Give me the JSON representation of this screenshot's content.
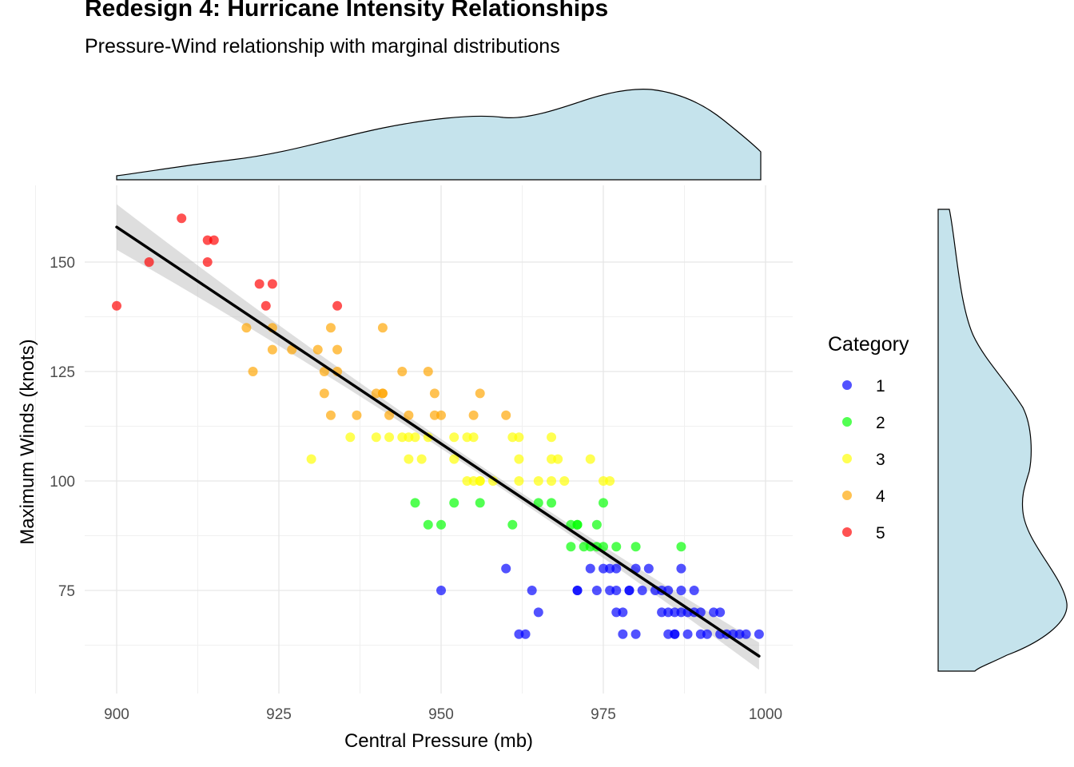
{
  "title": "Redesign 4: Hurricane Intensity Relationships",
  "subtitle": "Pressure-Wind relationship with marginal distributions",
  "chart_data": {
    "type": "scatter",
    "title": "Redesign 4: Hurricane Intensity Relationships",
    "subtitle": "Pressure-Wind relationship with marginal distributions",
    "xlabel": "Central Pressure (mb)",
    "ylabel": "Maximum Winds (knots)",
    "xlim": [
      900,
      1000
    ],
    "ylim": [
      65,
      160
    ],
    "xticks": [
      900,
      925,
      950,
      975,
      1000
    ],
    "yticks": [
      75,
      100,
      125,
      150
    ],
    "grid": true,
    "legend": {
      "title": "Category",
      "placement": "right"
    },
    "series": [
      {
        "name": "1",
        "color": "#0000FF",
        "x": [
          950,
          960,
          962,
          963,
          964,
          965,
          971,
          971,
          973,
          974,
          975,
          976,
          976,
          977,
          977,
          977,
          978,
          978,
          979,
          979,
          980,
          980,
          981,
          982,
          983,
          984,
          984,
          985,
          985,
          985,
          986,
          986,
          986,
          987,
          987,
          987,
          988,
          988,
          989,
          989,
          990,
          990,
          991,
          992,
          993,
          993,
          994,
          995,
          996,
          997,
          999
        ],
        "y": [
          75,
          80,
          65,
          65,
          75,
          70,
          75,
          75,
          80,
          75,
          80,
          75,
          80,
          70,
          80,
          75,
          65,
          70,
          75,
          75,
          80,
          65,
          75,
          80,
          75,
          75,
          70,
          75,
          70,
          65,
          70,
          65,
          65,
          75,
          70,
          80,
          70,
          65,
          75,
          70,
          70,
          65,
          65,
          70,
          70,
          65,
          65,
          65,
          65,
          65,
          65
        ]
      },
      {
        "name": "2",
        "color": "#00FF00",
        "x": [
          946,
          948,
          950,
          952,
          956,
          961,
          965,
          967,
          970,
          970,
          971,
          971,
          972,
          973,
          974,
          974,
          975,
          975,
          977,
          980,
          987
        ],
        "y": [
          95,
          90,
          90,
          95,
          95,
          90,
          95,
          95,
          90,
          85,
          90,
          90,
          85,
          85,
          90,
          85,
          95,
          85,
          85,
          85,
          85
        ]
      },
      {
        "name": "3",
        "color": "#FFFF00",
        "x": [
          930,
          936,
          940,
          942,
          944,
          945,
          945,
          946,
          947,
          948,
          952,
          952,
          954,
          954,
          955,
          955,
          956,
          956,
          958,
          961,
          962,
          962,
          962,
          965,
          967,
          967,
          967,
          968,
          969,
          973,
          975,
          976
        ],
        "y": [
          105,
          110,
          110,
          110,
          110,
          110,
          105,
          110,
          105,
          110,
          110,
          105,
          100,
          110,
          100,
          110,
          100,
          100,
          100,
          110,
          110,
          105,
          100,
          100,
          110,
          105,
          100,
          105,
          100,
          105,
          100,
          100
        ]
      },
      {
        "name": "4",
        "color": "#FFA500",
        "x": [
          920,
          921,
          924,
          924,
          927,
          931,
          932,
          932,
          933,
          933,
          934,
          934,
          937,
          940,
          941,
          941,
          941,
          942,
          944,
          945,
          948,
          949,
          949,
          950,
          955,
          956,
          960
        ],
        "y": [
          135,
          125,
          135,
          130,
          130,
          130,
          125,
          120,
          115,
          135,
          130,
          125,
          115,
          120,
          120,
          135,
          120,
          115,
          125,
          115,
          125,
          120,
          115,
          115,
          115,
          120,
          115
        ]
      },
      {
        "name": "5",
        "color": "#FF0000",
        "x": [
          900,
          905,
          910,
          914,
          914,
          915,
          922,
          923,
          924,
          934
        ],
        "y": [
          140,
          150,
          160,
          155,
          150,
          155,
          145,
          140,
          145,
          140
        ]
      }
    ],
    "trend_line": {
      "method": "linear fit with confidence band",
      "x": [
        900,
        1000
      ],
      "y": [
        158,
        59
      ]
    }
  }
}
